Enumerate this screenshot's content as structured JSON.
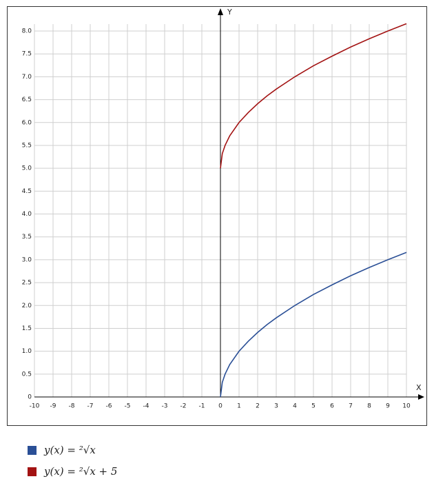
{
  "chart_data": {
    "type": "line",
    "x_label": "X",
    "y_label": "Y",
    "x": [
      0,
      0.1,
      0.25,
      0.5,
      1,
      1.5,
      2,
      2.5,
      3,
      4,
      5,
      6,
      7,
      8,
      9,
      10
    ],
    "series": [
      {
        "name": "y(x) = ²√x",
        "color": "#2a4f96",
        "values": [
          0,
          0.32,
          0.5,
          0.71,
          1,
          1.22,
          1.41,
          1.58,
          1.73,
          2,
          2.24,
          2.45,
          2.65,
          2.83,
          3,
          3.16
        ]
      },
      {
        "name": "y(x) = ²√x + 5",
        "color": "#a31313",
        "values": [
          5,
          5.32,
          5.5,
          5.71,
          6,
          6.22,
          6.41,
          6.58,
          6.73,
          7,
          7.24,
          7.45,
          7.65,
          7.83,
          8,
          8.16
        ]
      }
    ],
    "xlim": [
      -10,
      10
    ],
    "xticks": [
      -10,
      -9,
      -8,
      -7,
      -6,
      -5,
      -4,
      -3,
      -2,
      -1,
      0,
      1,
      2,
      3,
      4,
      5,
      6,
      7,
      8,
      9,
      10
    ],
    "ylim": [
      0,
      8
    ],
    "yticks": [
      0,
      0.5,
      {
        "value": 1,
        "label": "1.0"
      },
      1.5,
      {
        "value": 2,
        "label": "2.0"
      },
      2.5,
      {
        "value": 3,
        "label": "3.0"
      },
      3.5,
      {
        "value": 4,
        "label": "4.0"
      },
      4.5,
      {
        "value": 5,
        "label": "5.0"
      },
      5.5,
      {
        "value": 6,
        "label": "6.0"
      },
      6.5,
      {
        "value": 7,
        "label": "7.0"
      },
      7.5,
      {
        "value": 8,
        "label": "8.0"
      }
    ],
    "grid": true
  }
}
